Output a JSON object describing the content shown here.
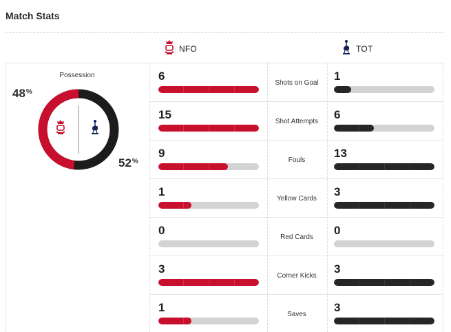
{
  "header": {
    "title": "Match Stats"
  },
  "teams": {
    "home": {
      "abbr": "NFO",
      "color": "#c8102e"
    },
    "away": {
      "abbr": "TOT",
      "color": "#1c1c1c"
    }
  },
  "possession": {
    "label": "Possession",
    "home_pct": "48",
    "away_pct": "52",
    "home_value": 48,
    "away_value": 52,
    "unit": "%"
  },
  "stats": [
    {
      "name": "Shots on Goal",
      "home": "6",
      "away": "1",
      "home_fill": 1.0,
      "away_fill": 0.17
    },
    {
      "name": "Shot Attempts",
      "home": "15",
      "away": "6",
      "home_fill": 1.0,
      "away_fill": 0.4
    },
    {
      "name": "Fouls",
      "home": "9",
      "away": "13",
      "home_fill": 0.69,
      "away_fill": 1.0
    },
    {
      "name": "Yellow Cards",
      "home": "1",
      "away": "3",
      "home_fill": 0.33,
      "away_fill": 1.0
    },
    {
      "name": "Red Cards",
      "home": "0",
      "away": "0",
      "home_fill": 0,
      "away_fill": 0
    },
    {
      "name": "Corner Kicks",
      "home": "3",
      "away": "3",
      "home_fill": 1.0,
      "away_fill": 1.0
    },
    {
      "name": "Saves",
      "home": "1",
      "away": "3",
      "home_fill": 0.33,
      "away_fill": 1.0
    }
  ]
}
